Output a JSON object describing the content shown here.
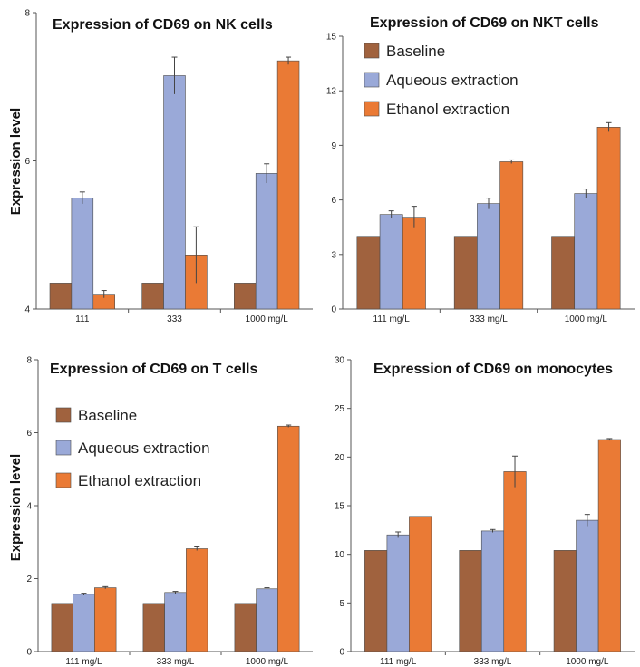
{
  "chart_data": [
    {
      "type": "bar",
      "title": "Expression of CD69 on NK cells",
      "ylabel": "Expression level",
      "ylim": [
        4,
        8
      ],
      "yticks": [
        "4",
        "6",
        "8"
      ],
      "categories": [
        "111",
        "333",
        "1000 mg/L"
      ],
      "legend": "none",
      "grid": false,
      "series": [
        {
          "name": "Baseline",
          "color": "#A0623E",
          "values": [
            4.35,
            4.35,
            4.35
          ],
          "errors": [
            0,
            0,
            0
          ]
        },
        {
          "name": "Aqueous extraction",
          "color": "#9AA9D8",
          "values": [
            5.5,
            7.15,
            5.83
          ],
          "errors": [
            0.08,
            0.25,
            0.13
          ]
        },
        {
          "name": "Ethanol extraction",
          "color": "#EA7A35",
          "values": [
            4.2,
            4.73,
            7.35
          ],
          "errors": [
            0.05,
            0.38,
            0.05
          ]
        }
      ]
    },
    {
      "type": "bar",
      "title": "Expression of CD69 on NKT cells",
      "ylabel": "",
      "ylim": [
        0,
        15
      ],
      "yticks": [
        "0",
        "3",
        "6",
        "9",
        "12",
        "15"
      ],
      "categories": [
        "111 mg/L",
        "333 mg/L",
        "1000 mg/L"
      ],
      "legend": "top-left",
      "grid": false,
      "series": [
        {
          "name": "Baseline",
          "color": "#A0623E",
          "values": [
            4.0,
            4.0,
            4.0
          ],
          "errors": [
            0,
            0,
            0
          ]
        },
        {
          "name": "Aqueous extraction",
          "color": "#9AA9D8",
          "values": [
            5.2,
            5.8,
            6.35
          ],
          "errors": [
            0.2,
            0.3,
            0.25
          ]
        },
        {
          "name": "Ethanol extraction",
          "color": "#EA7A35",
          "values": [
            5.05,
            8.1,
            10.0
          ],
          "errors": [
            0.6,
            0.1,
            0.25
          ]
        }
      ]
    },
    {
      "type": "bar",
      "title": "Expression of CD69 on T cells",
      "ylabel": "Expression level",
      "ylim": [
        0,
        8
      ],
      "yticks": [
        "0",
        "2",
        "4",
        "6",
        "8"
      ],
      "categories": [
        "111 mg/L",
        "333 mg/L",
        "1000 mg/L"
      ],
      "legend": "top-left",
      "grid": false,
      "series": [
        {
          "name": "Baseline",
          "color": "#A0623E",
          "values": [
            1.32,
            1.32,
            1.32
          ],
          "errors": [
            0,
            0,
            0
          ]
        },
        {
          "name": "Aqueous extraction",
          "color": "#9AA9D8",
          "values": [
            1.57,
            1.62,
            1.72
          ],
          "errors": [
            0.03,
            0.03,
            0.03
          ]
        },
        {
          "name": "Ethanol extraction",
          "color": "#EA7A35",
          "values": [
            1.75,
            2.82,
            6.18
          ],
          "errors": [
            0.03,
            0.05,
            0.03
          ]
        }
      ]
    },
    {
      "type": "bar",
      "title": "Expression of CD69 on monocytes",
      "ylabel": "",
      "ylim": [
        0,
        30
      ],
      "yticks": [
        "0",
        "5",
        "10",
        "15",
        "20",
        "25",
        "30"
      ],
      "categories": [
        "111 mg/L",
        "333 mg/L",
        "1000 mg/L"
      ],
      "legend": "none",
      "grid": false,
      "series": [
        {
          "name": "Baseline",
          "color": "#A0623E",
          "values": [
            10.4,
            10.4,
            10.4
          ],
          "errors": [
            0,
            0,
            0
          ]
        },
        {
          "name": "Aqueous extraction",
          "color": "#9AA9D8",
          "values": [
            12.0,
            12.4,
            13.5
          ],
          "errors": [
            0.3,
            0.15,
            0.6
          ]
        },
        {
          "name": "Ethanol extraction",
          "color": "#EA7A35",
          "values": [
            13.9,
            18.5,
            21.8
          ],
          "errors": [
            0,
            1.6,
            0.1
          ]
        }
      ]
    }
  ]
}
